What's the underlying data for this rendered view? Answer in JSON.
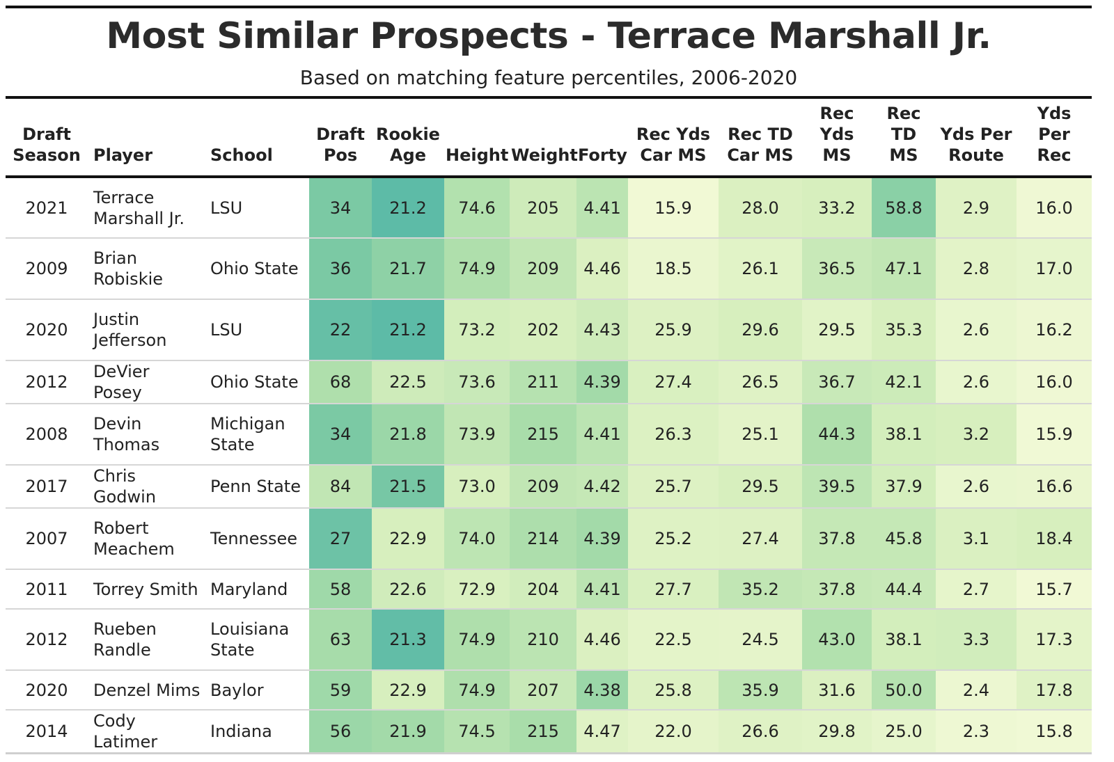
{
  "chart_data": {
    "type": "table",
    "title": "Most Similar Prospects - Terrace Marshall Jr.",
    "subtitle": "Based on matching feature percentiles, 2006-2020",
    "columns": [
      {
        "key": "season",
        "label": "Draft Season",
        "lines": [
          "Draft",
          "Season"
        ],
        "align": "center"
      },
      {
        "key": "player",
        "label": "Player",
        "lines": [
          "Player"
        ],
        "align": "left"
      },
      {
        "key": "school",
        "label": "School",
        "lines": [
          "School"
        ],
        "align": "left"
      },
      {
        "key": "pos",
        "label": "Draft Pos",
        "lines": [
          "Draft",
          "Pos"
        ],
        "align": "center",
        "shaded": true
      },
      {
        "key": "age",
        "label": "Rookie Age",
        "lines": [
          "Rookie",
          "Age"
        ],
        "align": "center",
        "shaded": true
      },
      {
        "key": "height",
        "label": "Height",
        "lines": [
          "Height"
        ],
        "align": "center",
        "shaded": true
      },
      {
        "key": "weight",
        "label": "Weight",
        "lines": [
          "Weight"
        ],
        "align": "center",
        "shaded": true
      },
      {
        "key": "forty",
        "label": "Forty",
        "lines": [
          "Forty"
        ],
        "align": "center",
        "shaded": true
      },
      {
        "key": "recydscar",
        "label": "Rec Yds Car MS",
        "lines": [
          "Rec Yds",
          "Car MS"
        ],
        "align": "center",
        "shaded": true
      },
      {
        "key": "rectdcar",
        "label": "Rec TD Car MS",
        "lines": [
          "Rec TD",
          "Car MS"
        ],
        "align": "center",
        "shaded": true
      },
      {
        "key": "recyds",
        "label": "Rec Yds MS",
        "lines": [
          "Rec",
          "Yds",
          "MS"
        ],
        "align": "center",
        "shaded": true
      },
      {
        "key": "rectd",
        "label": "Rec TD MS",
        "lines": [
          "Rec",
          "TD",
          "MS"
        ],
        "align": "center",
        "shaded": true
      },
      {
        "key": "ypr",
        "label": "Yds Per Route",
        "lines": [
          "Yds Per",
          "Route"
        ],
        "align": "center",
        "shaded": true
      },
      {
        "key": "yprec",
        "label": "Yds Per Rec",
        "lines": [
          "Yds",
          "Per",
          "Rec"
        ],
        "align": "center",
        "shaded": true
      }
    ],
    "rows": [
      {
        "season": "2021",
        "player": "Terrace Marshall Jr.",
        "player_lines": [
          "Terrace",
          "Marshall Jr."
        ],
        "school": "LSU",
        "school_lines": [
          "LSU"
        ],
        "pos": "34",
        "age": "21.2",
        "height": "74.6",
        "weight": "205",
        "forty": "4.41",
        "recydscar": "15.9",
        "rectdcar": "28.0",
        "recyds": "33.2",
        "rectd": "58.8",
        "ypr": "2.9",
        "yprec": "16.0",
        "shade": {
          "pos": 0.78,
          "age": 0.95,
          "height": 0.5,
          "weight": 0.35,
          "forty": 0.45,
          "recydscar": 0.03,
          "rectdcar": 0.26,
          "recyds": 0.3,
          "rectd": 0.7,
          "ypr": 0.22,
          "yprec": 0.05
        }
      },
      {
        "season": "2009",
        "player": "Brian Robiskie",
        "player_lines": [
          "Brian",
          "Robiskie"
        ],
        "school": "Ohio State",
        "school_lines": [
          "Ohio State"
        ],
        "pos": "36",
        "age": "21.7",
        "height": "74.9",
        "weight": "209",
        "forty": "4.46",
        "recydscar": "18.5",
        "rectdcar": "26.1",
        "recyds": "36.5",
        "rectd": "47.1",
        "ypr": "2.8",
        "yprec": "17.0",
        "shade": {
          "pos": 0.78,
          "age": 0.68,
          "height": 0.52,
          "weight": 0.42,
          "forty": 0.26,
          "recydscar": 0.1,
          "rectdcar": 0.2,
          "recyds": 0.38,
          "rectd": 0.42,
          "ypr": 0.18,
          "yprec": 0.14
        }
      },
      {
        "season": "2020",
        "player": "Justin Jefferson",
        "player_lines": [
          "Justin",
          "Jefferson"
        ],
        "school": "LSU",
        "school_lines": [
          "LSU"
        ],
        "pos": "22",
        "age": "21.2",
        "height": "73.2",
        "weight": "202",
        "forty": "4.43",
        "recydscar": "25.9",
        "rectdcar": "29.6",
        "recyds": "29.5",
        "rectd": "35.3",
        "ypr": "2.6",
        "yprec": "16.2",
        "shade": {
          "pos": 0.9,
          "age": 0.95,
          "height": 0.32,
          "weight": 0.3,
          "forty": 0.35,
          "recydscar": 0.24,
          "rectdcar": 0.3,
          "recyds": 0.2,
          "rectd": 0.3,
          "ypr": 0.12,
          "yprec": 0.07
        }
      },
      {
        "season": "2012",
        "player": "DeVier Posey",
        "player_lines": [
          "DeVier Posey"
        ],
        "school": "Ohio State",
        "school_lines": [
          "Ohio State"
        ],
        "pos": "68",
        "age": "22.5",
        "height": "73.6",
        "weight": "211",
        "forty": "4.39",
        "recydscar": "27.4",
        "rectdcar": "26.5",
        "recyds": "36.7",
        "rectd": "42.1",
        "ypr": "2.6",
        "yprec": "16.0",
        "shade": {
          "pos": 0.52,
          "age": 0.35,
          "height": 0.38,
          "weight": 0.48,
          "forty": 0.58,
          "recydscar": 0.28,
          "rectdcar": 0.22,
          "recyds": 0.38,
          "rectd": 0.36,
          "ypr": 0.12,
          "yprec": 0.05
        }
      },
      {
        "season": "2008",
        "player": "Devin Thomas",
        "player_lines": [
          "Devin",
          "Thomas"
        ],
        "school": "Michigan State",
        "school_lines": [
          "Michigan",
          "State"
        ],
        "pos": "34",
        "age": "21.8",
        "height": "73.9",
        "weight": "215",
        "forty": "4.41",
        "recydscar": "26.3",
        "rectdcar": "25.1",
        "recyds": "44.3",
        "rectd": "38.1",
        "ypr": "3.2",
        "yprec": "15.9",
        "shade": {
          "pos": 0.78,
          "age": 0.62,
          "height": 0.42,
          "weight": 0.55,
          "forty": 0.45,
          "recydscar": 0.25,
          "rectdcar": 0.18,
          "recyds": 0.52,
          "rectd": 0.32,
          "ypr": 0.3,
          "yprec": 0.04
        }
      },
      {
        "season": "2017",
        "player": "Chris Godwin",
        "player_lines": [
          "Chris Godwin"
        ],
        "school": "Penn State",
        "school_lines": [
          "Penn State"
        ],
        "pos": "84",
        "age": "21.5",
        "height": "73.0",
        "weight": "209",
        "forty": "4.42",
        "recydscar": "25.7",
        "rectdcar": "29.5",
        "recyds": "39.5",
        "rectd": "37.9",
        "ypr": "2.6",
        "yprec": "16.6",
        "shade": {
          "pos": 0.42,
          "age": 0.8,
          "height": 0.3,
          "weight": 0.42,
          "forty": 0.4,
          "recydscar": 0.24,
          "rectdcar": 0.3,
          "recyds": 0.44,
          "rectd": 0.32,
          "ypr": 0.12,
          "yprec": 0.1
        }
      },
      {
        "season": "2007",
        "player": "Robert Meachem",
        "player_lines": [
          "Robert",
          "Meachem"
        ],
        "school": "Tennessee",
        "school_lines": [
          "Tennessee"
        ],
        "pos": "27",
        "age": "22.9",
        "height": "74.0",
        "weight": "214",
        "forty": "4.39",
        "recydscar": "25.2",
        "rectdcar": "27.4",
        "recyds": "37.8",
        "rectd": "45.8",
        "ypr": "3.1",
        "yprec": "18.4",
        "shade": {
          "pos": 0.86,
          "age": 0.3,
          "height": 0.44,
          "weight": 0.53,
          "forty": 0.58,
          "recydscar": 0.23,
          "rectdcar": 0.24,
          "recyds": 0.4,
          "rectd": 0.4,
          "ypr": 0.27,
          "yprec": 0.3
        }
      },
      {
        "season": "2011",
        "player": "Torrey Smith",
        "player_lines": [
          "Torrey Smith"
        ],
        "school": "Maryland",
        "school_lines": [
          "Maryland"
        ],
        "pos": "58",
        "age": "22.6",
        "height": "72.9",
        "weight": "204",
        "forty": "4.41",
        "recydscar": "27.7",
        "rectdcar": "35.2",
        "recyds": "37.8",
        "rectd": "44.4",
        "ypr": "2.7",
        "yprec": "15.7",
        "shade": {
          "pos": 0.6,
          "age": 0.34,
          "height": 0.28,
          "weight": 0.33,
          "forty": 0.45,
          "recydscar": 0.28,
          "rectdcar": 0.42,
          "recyds": 0.4,
          "rectd": 0.38,
          "ypr": 0.15,
          "yprec": 0.03
        }
      },
      {
        "season": "2012",
        "player": "Rueben Randle",
        "player_lines": [
          "Rueben",
          "Randle"
        ],
        "school": "Louisiana State",
        "school_lines": [
          "Louisiana",
          "State"
        ],
        "pos": "63",
        "age": "21.3",
        "height": "74.9",
        "weight": "210",
        "forty": "4.46",
        "recydscar": "22.5",
        "rectdcar": "24.5",
        "recyds": "43.0",
        "rectd": "38.1",
        "ypr": "3.3",
        "yprec": "17.3",
        "shade": {
          "pos": 0.56,
          "age": 0.92,
          "height": 0.52,
          "weight": 0.45,
          "forty": 0.26,
          "recydscar": 0.17,
          "rectdcar": 0.16,
          "recyds": 0.5,
          "rectd": 0.32,
          "ypr": 0.33,
          "yprec": 0.17
        }
      },
      {
        "season": "2020",
        "player": "Denzel Mims",
        "player_lines": [
          "Denzel Mims"
        ],
        "school": "Baylor",
        "school_lines": [
          "Baylor"
        ],
        "pos": "59",
        "age": "22.9",
        "height": "74.9",
        "weight": "207",
        "forty": "4.38",
        "recydscar": "25.8",
        "rectdcar": "35.9",
        "recyds": "31.6",
        "rectd": "50.0",
        "ypr": "2.4",
        "yprec": "17.8",
        "shade": {
          "pos": 0.6,
          "age": 0.3,
          "height": 0.52,
          "weight": 0.38,
          "forty": 0.62,
          "recydscar": 0.24,
          "rectdcar": 0.44,
          "recyds": 0.26,
          "rectd": 0.48,
          "ypr": 0.08,
          "yprec": 0.22
        }
      },
      {
        "season": "2014",
        "player": "Cody Latimer",
        "player_lines": [
          "Cody Latimer"
        ],
        "school": "Indiana",
        "school_lines": [
          "Indiana"
        ],
        "pos": "56",
        "age": "21.9",
        "height": "74.5",
        "weight": "215",
        "forty": "4.47",
        "recydscar": "22.0",
        "rectdcar": "26.6",
        "recyds": "29.8",
        "rectd": "25.0",
        "ypr": "2.3",
        "yprec": "15.8",
        "shade": {
          "pos": 0.62,
          "age": 0.58,
          "height": 0.48,
          "weight": 0.55,
          "forty": 0.22,
          "recydscar": 0.16,
          "rectdcar": 0.22,
          "recyds": 0.2,
          "rectd": 0.14,
          "ypr": 0.06,
          "yprec": 0.04
        }
      }
    ]
  }
}
